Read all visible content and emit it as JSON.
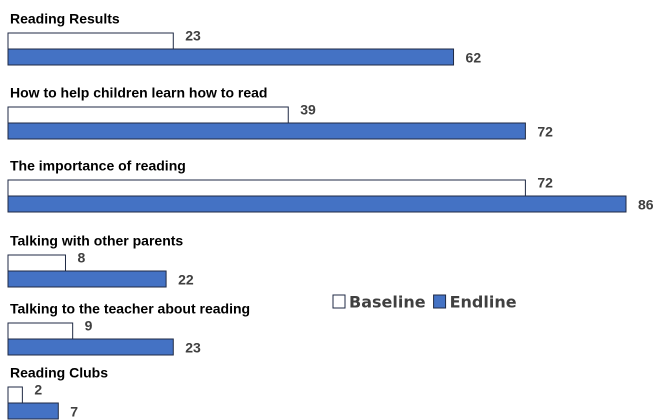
{
  "chart_data": {
    "type": "bar",
    "orientation": "horizontal",
    "categories": [
      "Reading Results",
      "How to help children learn how to read",
      "The importance of reading",
      "Talking with other parents",
      "Talking to the teacher about reading",
      "Reading Clubs"
    ],
    "series": [
      {
        "name": "Baseline",
        "color": "#ffffff",
        "values": [
          23,
          39,
          72,
          8,
          9,
          2
        ]
      },
      {
        "name": "Endline",
        "color": "#4472c4",
        "values": [
          62,
          72,
          86,
          22,
          23,
          7
        ]
      }
    ],
    "legend": "right"
  }
}
